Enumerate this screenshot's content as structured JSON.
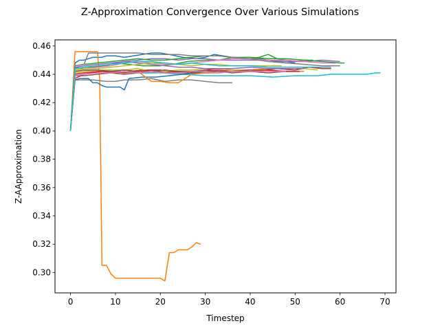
{
  "chart_data": {
    "type": "line",
    "title": "Z-Approximation Convergence Over Various Simulations",
    "xlabel": "Timestep",
    "ylabel": "Z-AApproximation",
    "xlim": [
      -3.45,
      72.45
    ],
    "ylim": [
      0.2856,
      0.4643
    ],
    "xticks": [
      0,
      10,
      20,
      30,
      40,
      50,
      60,
      70
    ],
    "yticks": [
      0.3,
      0.32,
      0.34,
      0.36,
      0.38,
      0.4,
      0.42,
      0.44,
      0.46
    ],
    "ytick_labels": [
      "0.30",
      "0.32",
      "0.34",
      "0.36",
      "0.38",
      "0.40",
      "0.42",
      "0.44",
      "0.46"
    ],
    "grid": false,
    "legend": "none",
    "series": [
      {
        "color": "#1f77b4",
        "x": [
          0,
          1,
          2,
          3,
          5,
          7,
          8,
          10,
          12,
          14,
          16,
          18,
          20,
          22,
          25,
          28,
          30,
          32,
          34,
          36,
          38,
          40,
          42,
          44,
          46,
          48,
          50
        ],
        "y": [
          0.4,
          0.448,
          0.45,
          0.45,
          0.452,
          0.452,
          0.453,
          0.453,
          0.452,
          0.453,
          0.454,
          0.455,
          0.455,
          0.454,
          0.452,
          0.451,
          0.452,
          0.454,
          0.453,
          0.452,
          0.451,
          0.451,
          0.451,
          0.45,
          0.449,
          0.449,
          0.448
        ]
      },
      {
        "color": "#ff7f0e",
        "x": [
          0,
          1,
          2,
          3,
          4,
          5,
          6,
          6.5,
          7,
          8,
          9,
          10,
          12,
          15,
          18,
          20,
          21,
          22,
          23,
          24,
          26,
          27,
          28,
          29
        ],
        "y": [
          0.4,
          0.456,
          0.456,
          0.456,
          0.456,
          0.456,
          0.456,
          0.436,
          0.305,
          0.305,
          0.299,
          0.296,
          0.296,
          0.296,
          0.296,
          0.296,
          0.294,
          0.314,
          0.314,
          0.316,
          0.316,
          0.318,
          0.321,
          0.32
        ]
      },
      {
        "color": "#2ca02c",
        "x": [
          0,
          1,
          3,
          5,
          8,
          10,
          13,
          16,
          20,
          23,
          26,
          30,
          33,
          36,
          38,
          40,
          42,
          44,
          46,
          48,
          50,
          52,
          54
        ],
        "y": [
          0.4,
          0.445,
          0.444,
          0.445,
          0.446,
          0.448,
          0.447,
          0.446,
          0.446,
          0.447,
          0.449,
          0.45,
          0.45,
          0.452,
          0.451,
          0.451,
          0.452,
          0.454,
          0.451,
          0.45,
          0.449,
          0.45,
          0.45
        ]
      },
      {
        "color": "#d62728",
        "x": [
          0,
          1,
          3,
          5,
          7,
          10,
          13,
          16,
          20,
          23,
          26,
          30,
          33,
          36,
          40,
          43,
          46,
          50,
          53,
          56,
          58
        ],
        "y": [
          0.4,
          0.437,
          0.44,
          0.441,
          0.442,
          0.441,
          0.442,
          0.443,
          0.443,
          0.442,
          0.441,
          0.443,
          0.444,
          0.443,
          0.442,
          0.443,
          0.444,
          0.443,
          0.445,
          0.444,
          0.444
        ]
      },
      {
        "color": "#9467bd",
        "x": [
          0,
          1,
          3,
          6,
          9,
          12,
          15,
          18,
          21,
          24,
          27,
          30,
          33,
          36,
          40,
          44,
          48,
          52,
          56,
          60
        ],
        "y": [
          0.4,
          0.444,
          0.445,
          0.446,
          0.447,
          0.449,
          0.45,
          0.451,
          0.451,
          0.45,
          0.451,
          0.451,
          0.45,
          0.45,
          0.45,
          0.45,
          0.449,
          0.449,
          0.45,
          0.449
        ]
      },
      {
        "color": "#8c564b",
        "x": [
          0,
          1,
          3,
          6,
          9,
          12,
          15,
          18,
          21,
          24,
          27,
          30,
          33,
          36,
          40,
          44,
          48,
          50
        ],
        "y": [
          0.4,
          0.439,
          0.439,
          0.44,
          0.441,
          0.44,
          0.441,
          0.441,
          0.442,
          0.441,
          0.441,
          0.442,
          0.442,
          0.441,
          0.442,
          0.441,
          0.442,
          0.442
        ]
      },
      {
        "color": "#e377c2",
        "x": [
          0,
          1,
          3,
          6,
          9,
          12,
          15,
          18,
          21,
          24,
          27,
          30,
          33,
          36,
          40,
          44,
          48,
          52,
          56,
          59
        ],
        "y": [
          0.4,
          0.443,
          0.444,
          0.445,
          0.446,
          0.448,
          0.449,
          0.448,
          0.447,
          0.447,
          0.448,
          0.449,
          0.45,
          0.451,
          0.451,
          0.45,
          0.45,
          0.449,
          0.448,
          0.448
        ]
      },
      {
        "color": "#7f7f7f",
        "x": [
          0,
          1,
          3,
          5,
          8,
          10,
          12,
          15,
          18,
          21,
          24,
          27,
          30,
          33,
          36
        ],
        "y": [
          0.4,
          0.436,
          0.436,
          0.436,
          0.435,
          0.435,
          0.436,
          0.436,
          0.437,
          0.435,
          0.436,
          0.436,
          0.435,
          0.434,
          0.434
        ]
      },
      {
        "color": "#bcbd22",
        "x": [
          0,
          1,
          3,
          6,
          9,
          12,
          15,
          18,
          21,
          24,
          27,
          30,
          33,
          36,
          40,
          44,
          48,
          52,
          55
        ],
        "y": [
          0.4,
          0.441,
          0.442,
          0.443,
          0.443,
          0.443,
          0.444,
          0.442,
          0.442,
          0.443,
          0.443,
          0.444,
          0.444,
          0.443,
          0.443,
          0.444,
          0.444,
          0.444,
          0.443
        ]
      },
      {
        "color": "#17becf",
        "x": [
          0,
          1,
          3,
          6,
          10,
          15,
          20,
          25,
          30,
          35,
          40,
          45,
          50,
          55,
          58,
          60,
          63,
          66,
          68,
          69
        ],
        "y": [
          0.4,
          0.442,
          0.443,
          0.443,
          0.442,
          0.441,
          0.441,
          0.44,
          0.439,
          0.439,
          0.439,
          0.438,
          0.439,
          0.439,
          0.44,
          0.44,
          0.44,
          0.44,
          0.441,
          0.441
        ]
      },
      {
        "color": "#1f77b4",
        "x": [
          0,
          1,
          2,
          3,
          4,
          5,
          6,
          7,
          8,
          9,
          10,
          11,
          12,
          13,
          16,
          19,
          22,
          25,
          28,
          31
        ],
        "y": [
          0.4,
          0.436,
          0.437,
          0.437,
          0.437,
          0.434,
          0.434,
          0.432,
          0.431,
          0.431,
          0.431,
          0.431,
          0.429,
          0.437,
          0.438,
          0.438,
          0.439,
          0.44,
          0.441,
          0.441
        ]
      },
      {
        "color": "#ff7f0e",
        "x": [
          0,
          1,
          3,
          6,
          9,
          12,
          15,
          18,
          20,
          22,
          24,
          27,
          30,
          33,
          36,
          40,
          43,
          46,
          49,
          52
        ],
        "y": [
          0.4,
          0.44,
          0.441,
          0.442,
          0.442,
          0.443,
          0.442,
          0.435,
          0.435,
          0.434,
          0.434,
          0.44,
          0.441,
          0.441,
          0.442,
          0.442,
          0.443,
          0.442,
          0.442,
          0.442
        ]
      },
      {
        "color": "#2ca02c",
        "x": [
          0,
          1,
          3,
          6,
          9,
          12,
          15,
          18,
          21,
          24,
          27,
          30,
          33,
          36,
          40,
          44,
          48,
          52,
          56,
          60,
          61
        ],
        "y": [
          0.4,
          0.446,
          0.447,
          0.448,
          0.449,
          0.45,
          0.451,
          0.45,
          0.45,
          0.451,
          0.452,
          0.453,
          0.453,
          0.452,
          0.452,
          0.451,
          0.451,
          0.45,
          0.449,
          0.448,
          0.448
        ]
      },
      {
        "color": "#d62728",
        "x": [
          0,
          1,
          3,
          6,
          9,
          12,
          15,
          18,
          21,
          24,
          27,
          30,
          33,
          36,
          40,
          44,
          48,
          51
        ],
        "y": [
          0.4,
          0.44,
          0.441,
          0.442,
          0.442,
          0.441,
          0.442,
          0.443,
          0.441,
          0.442,
          0.442,
          0.442,
          0.443,
          0.442,
          0.443,
          0.443,
          0.442,
          0.442
        ]
      },
      {
        "color": "#9467bd",
        "x": [
          0,
          1,
          3,
          6,
          9,
          12,
          15,
          18,
          21,
          24,
          27,
          30,
          33,
          36,
          40,
          44,
          48,
          52
        ],
        "y": [
          0.4,
          0.445,
          0.446,
          0.447,
          0.448,
          0.449,
          0.448,
          0.447,
          0.446,
          0.445,
          0.445,
          0.444,
          0.444,
          0.444,
          0.445,
          0.444,
          0.444,
          0.444
        ]
      },
      {
        "color": "#8c564b",
        "x": [
          0,
          1,
          3,
          6,
          9,
          12,
          15,
          18,
          21,
          24,
          27,
          30,
          33,
          36,
          40,
          43
        ],
        "y": [
          0.4,
          0.442,
          0.443,
          0.443,
          0.442,
          0.443,
          0.442,
          0.442,
          0.443,
          0.442,
          0.442,
          0.443,
          0.442,
          0.442,
          0.442,
          0.442
        ]
      },
      {
        "color": "#e377c2",
        "x": [
          0,
          1,
          3,
          6,
          9,
          12,
          15,
          18,
          21,
          24,
          27,
          30,
          33,
          36,
          40,
          44,
          48
        ],
        "y": [
          0.4,
          0.439,
          0.44,
          0.441,
          0.441,
          0.442,
          0.441,
          0.442,
          0.441,
          0.441,
          0.442,
          0.442,
          0.441,
          0.442,
          0.442,
          0.442,
          0.442
        ]
      },
      {
        "color": "#7f7f7f",
        "x": [
          0,
          1,
          3,
          4,
          6,
          8,
          10,
          12,
          15,
          18,
          21,
          24,
          27,
          30,
          33,
          36,
          40,
          44,
          48,
          52,
          56,
          60
        ],
        "y": [
          0.4,
          0.446,
          0.447,
          0.455,
          0.455,
          0.455,
          0.455,
          0.455,
          0.455,
          0.454,
          0.454,
          0.454,
          0.453,
          0.453,
          0.453,
          0.452,
          0.451,
          0.449,
          0.448,
          0.447,
          0.446,
          0.446
        ]
      },
      {
        "color": "#bcbd22",
        "x": [
          0,
          1,
          3,
          6,
          9,
          12,
          15,
          18,
          21,
          24,
          27,
          30,
          33,
          36,
          40,
          44,
          47
        ],
        "y": [
          0.4,
          0.443,
          0.444,
          0.444,
          0.445,
          0.446,
          0.447,
          0.448,
          0.448,
          0.447,
          0.446,
          0.447,
          0.447,
          0.446,
          0.446,
          0.446,
          0.446
        ]
      },
      {
        "color": "#17becf",
        "x": [
          0,
          1,
          3,
          6,
          9,
          12,
          15,
          18,
          21,
          24,
          27,
          30,
          33,
          36,
          40,
          44,
          48,
          52,
          56,
          58
        ],
        "y": [
          0.4,
          0.444,
          0.445,
          0.446,
          0.447,
          0.448,
          0.449,
          0.449,
          0.448,
          0.447,
          0.448,
          0.447,
          0.446,
          0.446,
          0.446,
          0.445,
          0.445,
          0.445,
          0.445,
          0.445
        ]
      }
    ]
  }
}
